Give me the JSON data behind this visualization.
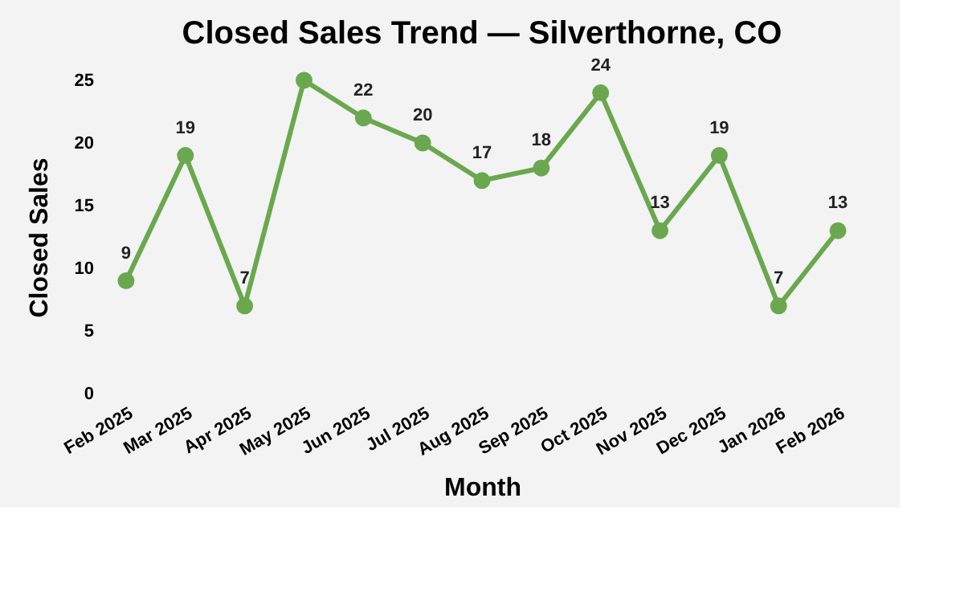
{
  "chart_data": {
    "type": "line",
    "title": "Closed Sales Trend — Silverthorne, CO",
    "xlabel": "Month",
    "ylabel": "Closed Sales",
    "categories": [
      "Feb 2025",
      "Mar 2025",
      "Apr 2025",
      "May 2025",
      "Jun 2025",
      "Jul 2025",
      "Aug 2025",
      "Sep 2025",
      "Oct 2025",
      "Nov 2025",
      "Dec 2025",
      "Jan 2026",
      "Feb 2026"
    ],
    "series": [
      {
        "color": "#6aa84f",
        "values": [
          9,
          19,
          7,
          25,
          22,
          20,
          17,
          18,
          24,
          13,
          19,
          7,
          13
        ]
      }
    ],
    "value_labels": [
      "9",
      "19",
      "7",
      null,
      "22",
      "20",
      "17",
      "18",
      "24",
      "13",
      "19",
      "7",
      "13"
    ],
    "ylim": [
      0,
      25
    ],
    "yticks": [
      0,
      5,
      10,
      15,
      20,
      25
    ],
    "grid": false,
    "marker": "circle",
    "line_style": "solid"
  }
}
